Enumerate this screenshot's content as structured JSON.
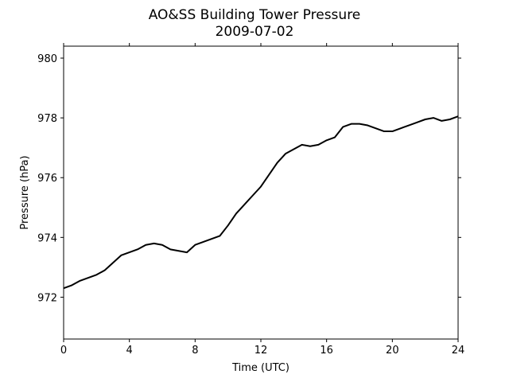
{
  "chart_data": {
    "type": "line",
    "title": "AO&SS Building Tower Pressure",
    "subtitle": "2009-07-02",
    "x_label": "Time (UTC)",
    "y_label": "Pressure (hPa)",
    "x": [
      0,
      0.5,
      1,
      1.5,
      2,
      2.5,
      3,
      3.5,
      4,
      4.5,
      5,
      5.5,
      6,
      6.5,
      7,
      7.5,
      8,
      8.5,
      9,
      9.5,
      10,
      10.5,
      11,
      11.5,
      12,
      12.5,
      13,
      13.5,
      14,
      14.5,
      15,
      15.5,
      16,
      16.5,
      17,
      17.5,
      18,
      18.5,
      19,
      19.5,
      20,
      20.5,
      21,
      21.5,
      22,
      22.5,
      23,
      23.5,
      24
    ],
    "series": [
      {
        "name": "Pressure",
        "color": "#000000",
        "values": [
          972.3,
          972.4,
          972.55,
          972.65,
          972.75,
          972.9,
          973.15,
          973.4,
          973.5,
          973.6,
          973.75,
          973.8,
          973.75,
          973.6,
          973.55,
          973.5,
          973.75,
          973.85,
          973.95,
          974.05,
          974.4,
          974.8,
          975.1,
          975.4,
          975.7,
          976.1,
          976.5,
          976.8,
          976.95,
          977.1,
          977.05,
          977.1,
          977.25,
          977.35,
          977.7,
          977.8,
          977.8,
          977.75,
          977.65,
          977.55,
          977.55,
          977.65,
          977.75,
          977.85,
          977.95,
          978.0,
          977.9,
          977.95,
          978.05
        ]
      }
    ],
    "xlim": [
      0,
      24
    ],
    "xticks": [
      0,
      4,
      8,
      12,
      16,
      20,
      24
    ],
    "ylim": [
      970.6,
      980.4
    ],
    "yticks": [
      972,
      974,
      976,
      978,
      980
    ]
  }
}
